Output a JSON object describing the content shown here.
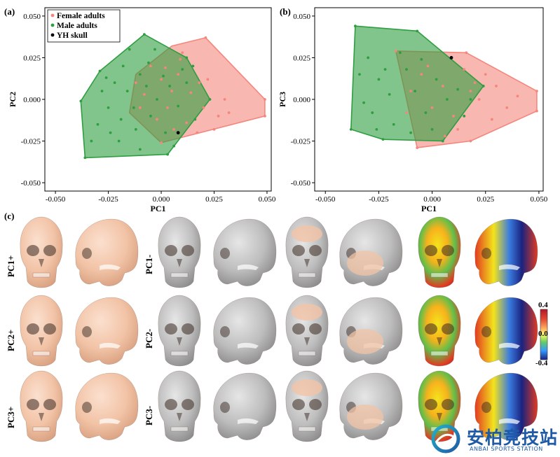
{
  "chart_data": [
    {
      "type": "scatter",
      "panel": "(a)",
      "xlabel": "PC1",
      "ylabel": "PC2",
      "xlim": [
        -0.055,
        0.052
      ],
      "ylim": [
        -0.055,
        0.055
      ],
      "xticks": [
        "-0.050",
        "-0.025",
        "0.000",
        "0.025",
        "0.050"
      ],
      "yticks": [
        "0.050",
        "0.025",
        "0.000",
        "-0.025",
        "-0.050"
      ],
      "xtick_values": [
        -0.05,
        -0.025,
        0.0,
        0.025,
        0.05
      ],
      "ytick_values": [
        0.05,
        0.025,
        0.0,
        -0.025,
        -0.05
      ],
      "legend_position": "top-left",
      "grid": false,
      "series": [
        {
          "name": "Female adults",
          "color": "#f4877d",
          "hull": [
            [
              0.021,
              0.037
            ],
            [
              0.049,
              0.0
            ],
            [
              0.049,
              -0.01
            ],
            [
              0.0,
              -0.026
            ],
            [
              -0.015,
              -0.008
            ],
            [
              -0.012,
              0.015
            ],
            [
              0.005,
              0.032
            ]
          ],
          "points": [
            [
              0.021,
              0.037
            ],
            [
              0.049,
              0.0
            ],
            [
              0.049,
              -0.01
            ],
            [
              0.0,
              -0.026
            ],
            [
              0.03,
              0.0
            ],
            [
              0.032,
              -0.008
            ],
            [
              0.025,
              -0.018
            ],
            [
              0.02,
              -0.005
            ],
            [
              0.018,
              0.01
            ],
            [
              0.015,
              0.02
            ],
            [
              0.01,
              0.028
            ],
            [
              0.012,
              -0.014
            ],
            [
              0.008,
              0.015
            ],
            [
              0.005,
              0.005
            ],
            [
              0.003,
              -0.005
            ],
            [
              0.0,
              0.012
            ],
            [
              -0.002,
              -0.012
            ],
            [
              -0.005,
              0.02
            ],
            [
              -0.008,
              0.003
            ],
            [
              -0.01,
              -0.005
            ],
            [
              -0.012,
              0.01
            ],
            [
              0.014,
              0.004
            ],
            [
              0.022,
              0.012
            ],
            [
              0.027,
              -0.01
            ],
            [
              0.017,
              -0.02
            ],
            [
              0.006,
              -0.018
            ],
            [
              0.009,
              0.024
            ],
            [
              0.002,
              0.019
            ]
          ]
        },
        {
          "name": "Male adults",
          "color": "#2e9e40",
          "hull": [
            [
              -0.008,
              0.039
            ],
            [
              0.012,
              0.025
            ],
            [
              0.023,
              0.0
            ],
            [
              0.003,
              -0.033
            ],
            [
              -0.036,
              -0.035
            ],
            [
              -0.038,
              -0.001
            ],
            [
              -0.029,
              0.017
            ]
          ],
          "points": [
            [
              -0.008,
              0.039
            ],
            [
              0.012,
              0.025
            ],
            [
              0.023,
              0.0
            ],
            [
              0.003,
              -0.033
            ],
            [
              -0.036,
              -0.035
            ],
            [
              -0.038,
              -0.001
            ],
            [
              -0.029,
              0.017
            ],
            [
              -0.015,
              0.03
            ],
            [
              -0.018,
              0.02
            ],
            [
              -0.022,
              0.01
            ],
            [
              -0.025,
              -0.005
            ],
            [
              -0.03,
              -0.015
            ],
            [
              -0.02,
              -0.025
            ],
            [
              -0.012,
              -0.018
            ],
            [
              -0.005,
              -0.01
            ],
            [
              -0.002,
              0.0
            ],
            [
              0.004,
              0.008
            ],
            [
              0.008,
              -0.004
            ],
            [
              0.012,
              0.01
            ],
            [
              -0.01,
              0.015
            ],
            [
              -0.016,
              0.005
            ],
            [
              -0.006,
              0.022
            ],
            [
              0.002,
              -0.02
            ],
            [
              0.006,
              -0.028
            ],
            [
              -0.024,
              -0.02
            ],
            [
              -0.01,
              -0.03
            ],
            [
              0.016,
              -0.012
            ],
            [
              -0.003,
              0.03
            ],
            [
              -0.028,
              0.005
            ],
            [
              -0.033,
              -0.025
            ],
            [
              0.01,
              0.018
            ],
            [
              -0.013,
              -0.005
            ],
            [
              0.001,
              0.014
            ],
            [
              -0.019,
              -0.012
            ],
            [
              0.015,
              0.02
            ],
            [
              -0.007,
              0.008
            ],
            [
              -0.026,
              0.013
            ]
          ]
        },
        {
          "name": "YH skull",
          "color": "#000000",
          "hull": [],
          "points": [
            [
              0.008,
              -0.02
            ]
          ]
        }
      ]
    },
    {
      "type": "scatter",
      "panel": "(b)",
      "xlabel": "PC1",
      "ylabel": "PC3",
      "xlim": [
        -0.055,
        0.052
      ],
      "ylim": [
        -0.055,
        0.055
      ],
      "xticks": [
        "-0.050",
        "-0.025",
        "0.000",
        "0.025",
        "0.050"
      ],
      "yticks": [
        "0.050",
        "0.025",
        "0.000",
        "-0.025",
        "-0.050"
      ],
      "xtick_values": [
        -0.05,
        -0.025,
        0.0,
        0.025,
        0.05
      ],
      "ytick_values": [
        0.05,
        0.025,
        0.0,
        -0.025,
        -0.05
      ],
      "grid": false,
      "series": [
        {
          "name": "Female adults",
          "color": "#f4877d",
          "hull": [
            [
              -0.017,
              0.029
            ],
            [
              0.016,
              0.028
            ],
            [
              0.049,
              0.005
            ],
            [
              0.049,
              -0.007
            ],
            [
              0.018,
              -0.025
            ],
            [
              -0.007,
              -0.029
            ]
          ],
          "points": [
            [
              -0.017,
              0.029
            ],
            [
              0.016,
              0.028
            ],
            [
              0.049,
              0.005
            ],
            [
              0.049,
              -0.007
            ],
            [
              0.018,
              -0.025
            ],
            [
              -0.007,
              -0.029
            ],
            [
              0.03,
              0.008
            ],
            [
              0.035,
              -0.005
            ],
            [
              0.028,
              -0.012
            ],
            [
              0.022,
              0.0
            ],
            [
              0.02,
              0.01
            ],
            [
              0.015,
              0.018
            ],
            [
              0.01,
              -0.01
            ],
            [
              0.005,
              0.008
            ],
            [
              0.0,
              -0.005
            ],
            [
              -0.005,
              0.015
            ],
            [
              -0.01,
              0.005
            ],
            [
              -0.012,
              -0.008
            ],
            [
              0.012,
              -0.018
            ],
            [
              0.025,
              0.015
            ],
            [
              0.04,
              0.002
            ],
            [
              0.006,
              -0.022
            ],
            [
              0.018,
              0.005
            ],
            [
              -0.002,
              0.02
            ]
          ]
        },
        {
          "name": "Male adults",
          "color": "#2e9e40",
          "hull": [
            [
              -0.036,
              0.044
            ],
            [
              -0.007,
              0.041
            ],
            [
              0.024,
              0.008
            ],
            [
              0.005,
              -0.025
            ],
            [
              -0.023,
              -0.024
            ],
            [
              -0.038,
              -0.018
            ]
          ],
          "points": [
            [
              -0.036,
              0.044
            ],
            [
              -0.007,
              0.041
            ],
            [
              0.024,
              0.008
            ],
            [
              0.005,
              -0.025
            ],
            [
              -0.023,
              -0.024
            ],
            [
              -0.038,
              -0.018
            ],
            [
              -0.03,
              0.025
            ],
            [
              -0.025,
              0.012
            ],
            [
              -0.02,
              0.003
            ],
            [
              -0.028,
              -0.008
            ],
            [
              -0.032,
              -0.002
            ],
            [
              -0.018,
              -0.015
            ],
            [
              -0.012,
              0.018
            ],
            [
              -0.008,
              0.005
            ],
            [
              -0.003,
              -0.008
            ],
            [
              0.002,
              0.012
            ],
            [
              0.007,
              0.0
            ],
            [
              0.012,
              0.006
            ],
            [
              -0.015,
              0.028
            ],
            [
              -0.022,
              0.018
            ],
            [
              -0.005,
              0.024
            ],
            [
              0.015,
              -0.01
            ],
            [
              -0.01,
              -0.02
            ],
            [
              0.0,
              -0.018
            ],
            [
              -0.026,
              -0.018
            ],
            [
              0.018,
              0.0
            ],
            [
              -0.034,
              0.015
            ]
          ]
        },
        {
          "name": "YH skull",
          "color": "#000000",
          "hull": [],
          "points": [
            [
              0.009,
              0.025
            ]
          ]
        }
      ]
    }
  ],
  "panel_c": {
    "letter": "(c)",
    "rows": [
      "PC1+",
      "PC1-",
      "PC2+",
      "PC2-",
      "PC3+",
      "PC3-"
    ]
  },
  "colorbar": {
    "max": "0.4",
    "mid": "0.0",
    "min": "-0.4",
    "colors": [
      "#b2182b",
      "#e34a33",
      "#fdae61",
      "#ffff66",
      "#66cc66",
      "#3399ff",
      "#1a237e"
    ]
  },
  "watermark": {
    "main": "安柏竞技站",
    "sub": "ANBAI SPORTS STATION"
  }
}
